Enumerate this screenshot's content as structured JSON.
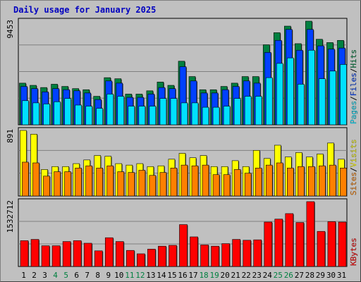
{
  "chart_data": {
    "type": "bar",
    "title": "Daily usage for January 2025",
    "categories": [
      "1",
      "2",
      "3",
      "4",
      "5",
      "6",
      "7",
      "8",
      "9",
      "10",
      "11",
      "12",
      "13",
      "14",
      "15",
      "16",
      "17",
      "18",
      "19",
      "20",
      "21",
      "22",
      "23",
      "24",
      "25",
      "26",
      "27",
      "28",
      "29",
      "30",
      "31"
    ],
    "weekend_days": [
      "4",
      "5",
      "11",
      "12",
      "18",
      "19",
      "25",
      "26"
    ],
    "panels": [
      {
        "id": "hits-files-pages",
        "max_label": "9453",
        "ylim": [
          0,
          9453
        ],
        "legend": [
          "Pages",
          "/",
          "Files",
          "/",
          "Hits"
        ],
        "series": [
          {
            "name": "Hits",
            "color": "#008040",
            "values": [
              3800,
              3600,
              3400,
              3700,
              3500,
              3300,
              3200,
              2600,
              4300,
              4200,
              2800,
              2800,
              3100,
              3900,
              3600,
              5800,
              4400,
              3200,
              3200,
              3500,
              3800,
              4400,
              4400,
              7300,
              8400,
              9000,
              7400,
              9453,
              7800,
              7500,
              7700
            ]
          },
          {
            "name": "Files",
            "color": "#0040ff",
            "values": [
              3500,
              3300,
              3000,
              3300,
              3200,
              3100,
              2900,
              2300,
              4000,
              3800,
              2500,
              2500,
              2800,
              3400,
              3300,
              5300,
              4000,
              2900,
              2900,
              3200,
              3500,
              4000,
              3800,
              6600,
              7700,
              8700,
              6800,
              8700,
              7200,
              6900,
              7000
            ]
          },
          {
            "name": "Pages",
            "color": "#00e0ff",
            "values": [
              2200,
              2000,
              1900,
              2100,
              2400,
              1800,
              1700,
              1500,
              2800,
              2600,
              1700,
              1700,
              1700,
              2400,
              2400,
              2000,
              2000,
              1600,
              1600,
              1700,
              2400,
              2600,
              2600,
              4300,
              5600,
              6100,
              3700,
              6800,
              4200,
              4900,
              5500
            ]
          }
        ]
      },
      {
        "id": "visits-sites",
        "max_label": "891",
        "ylim": [
          0,
          891
        ],
        "legend": [
          "Sites",
          "/",
          "Visits"
        ],
        "series": [
          {
            "name": "Visits",
            "color": "#ffff00",
            "values": [
              891,
              840,
              360,
              400,
              400,
              440,
              490,
              550,
              540,
              440,
              420,
              440,
              400,
              410,
              500,
              580,
              520,
              550,
              400,
              400,
              480,
              400,
              620,
              510,
              690,
              530,
              590,
              530,
              570,
              720,
              500
            ]
          },
          {
            "name": "Sites",
            "color": "#ff8000",
            "values": [
              460,
              450,
              270,
              330,
              330,
              380,
              410,
              380,
              410,
              330,
              320,
              350,
              280,
              320,
              380,
              420,
              410,
              420,
              290,
              290,
              360,
              310,
              380,
              420,
              450,
              380,
              400,
              400,
              410,
              420,
              380
            ]
          }
        ]
      },
      {
        "id": "kbytes",
        "max_label": "1532712",
        "ylim": [
          0,
          1532712
        ],
        "legend": [
          "KBytes"
        ],
        "series": [
          {
            "name": "KBytes",
            "color": "#ff0000",
            "values": [
              610000,
              640000,
              490000,
              490000,
              590000,
              610000,
              550000,
              370000,
              680000,
              590000,
              380000,
              300000,
              410000,
              480000,
              500000,
              990000,
              700000,
              510000,
              480000,
              540000,
              640000,
              620000,
              630000,
              1050000,
              1120000,
              1250000,
              1040000,
              1532712,
              830000,
              1060000,
              1050000
            ]
          }
        ]
      }
    ],
    "grid": true
  },
  "colors": {
    "background": "#c0c0c0",
    "title": "#0000c0",
    "weekday_label": "#000000",
    "weekend_label": "#008040",
    "separator_bar": "#000000"
  }
}
